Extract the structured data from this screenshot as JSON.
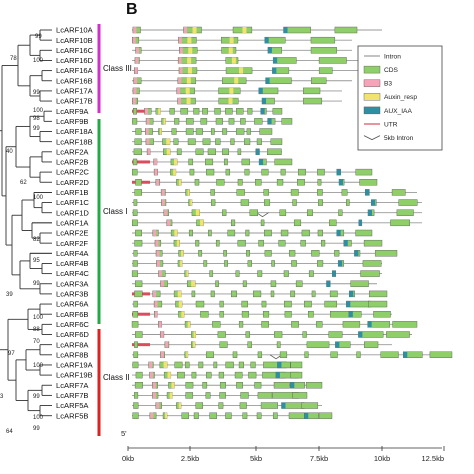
{
  "panel_label": "B",
  "axis": {
    "origin_label": "5'",
    "ticks": [
      "0kb",
      "2.5kb",
      "5kb",
      "7.5kb",
      "10kb",
      "12.5kb"
    ]
  },
  "legend": [
    {
      "label": "Intron",
      "color": "#999999",
      "kind": "line"
    },
    {
      "label": "CDS",
      "color": "#8fcf6a",
      "kind": "box"
    },
    {
      "label": "B3",
      "color": "#f5a3b8",
      "kind": "box"
    },
    {
      "label": "Auxin_resp",
      "color": "#f2e36e",
      "kind": "box"
    },
    {
      "label": "AUX_IAA",
      "color": "#2e8fa3",
      "kind": "box"
    },
    {
      "label": "UTR",
      "color": "#d94d5e",
      "kind": "line"
    },
    {
      "label": "5kb Intron",
      "color": "#555555",
      "kind": "vee"
    }
  ],
  "classes": [
    {
      "label": "Class III",
      "color": "#d030c8"
    },
    {
      "label": "Class I",
      "color": "#22aa44"
    },
    {
      "label": "Class II",
      "color": "#dd2222"
    }
  ],
  "genes": [
    "LcARF10A",
    "LcARF10B",
    "LcARF16C",
    "LcARF16D",
    "LcARF16A",
    "LcARF16B",
    "LcARF17A",
    "LcARF17B",
    "LcARF9A",
    "LcARF9B",
    "LcARF18A",
    "LcARF18B",
    "LcARF2A",
    "LcARF2B",
    "LcARF2C",
    "LcARF2D",
    "LcARF1B",
    "LcARF1C",
    "LcARF1D",
    "LcARF1A",
    "LcARF2E",
    "LcARF2F",
    "LcARF4A",
    "LcARF4B",
    "LcARF4C",
    "LcARF3A",
    "LcARF3B",
    "LcARF6A",
    "LcARF6B",
    "LcARF6C",
    "LcARF6D",
    "LcARF8A",
    "LcARF8B",
    "LcARF19A",
    "LcARF19B",
    "LcARF7A",
    "LcARF7B",
    "LcARF5A",
    "LcARF5B"
  ],
  "bootstrap": [
    "99",
    "78",
    "100",
    "99",
    "100",
    "98",
    "99",
    "40",
    "62",
    "100",
    "82",
    "95",
    "99",
    "39",
    "100",
    "88",
    "70",
    "97",
    "100",
    "99",
    "100",
    "64",
    "99",
    "3"
  ]
}
